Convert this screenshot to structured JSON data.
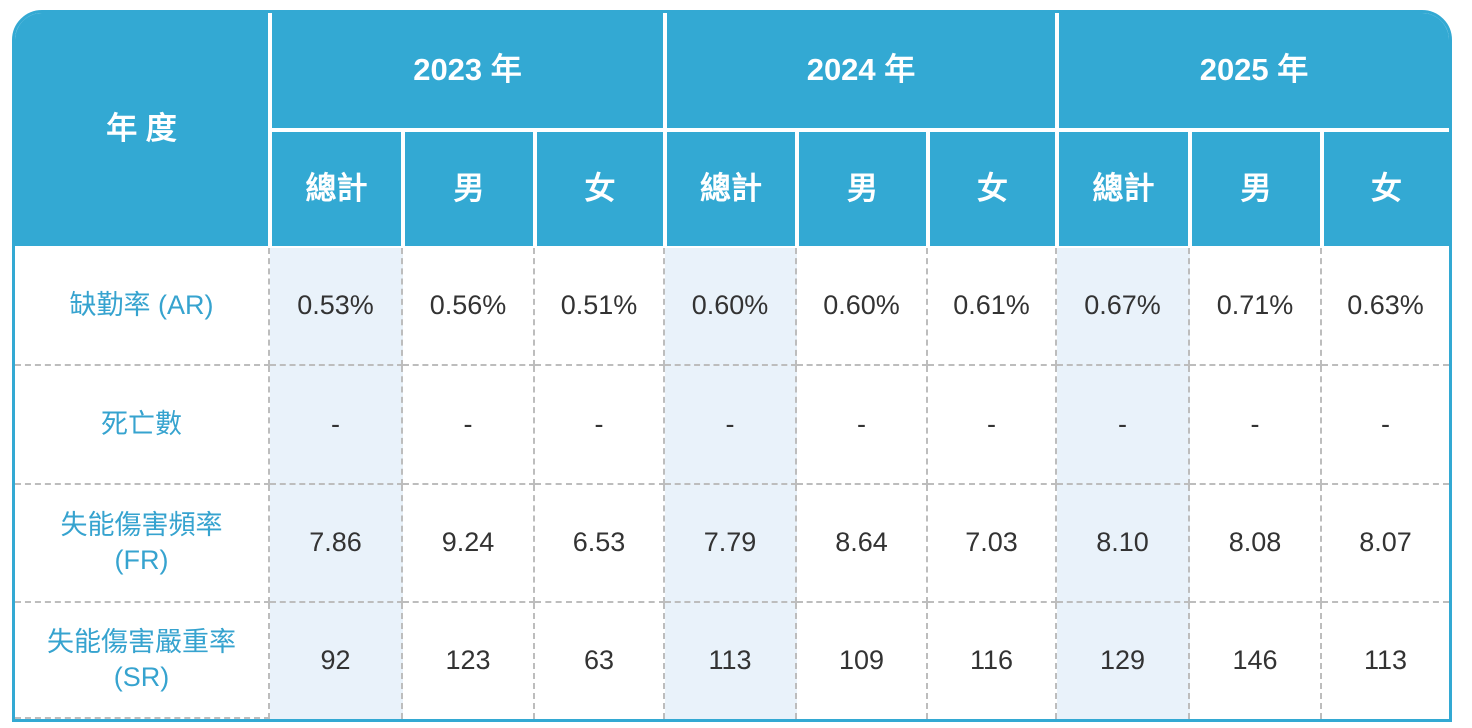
{
  "table": {
    "header": {
      "corner": "年 度",
      "years": [
        "2023 年",
        "2024 年",
        "2025 年"
      ],
      "subheaders": [
        [
          "總計",
          "男",
          "女"
        ],
        [
          "總計",
          "男",
          "女"
        ],
        [
          "總計",
          "男",
          "女"
        ]
      ]
    },
    "rows": [
      {
        "label": "缺勤率 (AR)",
        "cells": [
          "0.53%",
          "0.56%",
          "0.51%",
          "0.60%",
          "0.60%",
          "0.61%",
          "0.67%",
          "0.71%",
          "0.63%"
        ]
      },
      {
        "label": "死亡數",
        "cells": [
          "-",
          "-",
          "-",
          "-",
          "-",
          "-",
          "-",
          "-",
          "-"
        ]
      },
      {
        "label": "失能傷害頻率\n(FR)",
        "cells": [
          "7.86",
          "9.24",
          "6.53",
          "7.79",
          "8.64",
          "7.03",
          "8.10",
          "8.08",
          "8.07"
        ]
      },
      {
        "label": "失能傷害嚴重率\n(SR)",
        "cells": [
          "92",
          "123",
          "63",
          "113",
          "109",
          "116",
          "129",
          "146",
          "113"
        ]
      }
    ]
  }
}
